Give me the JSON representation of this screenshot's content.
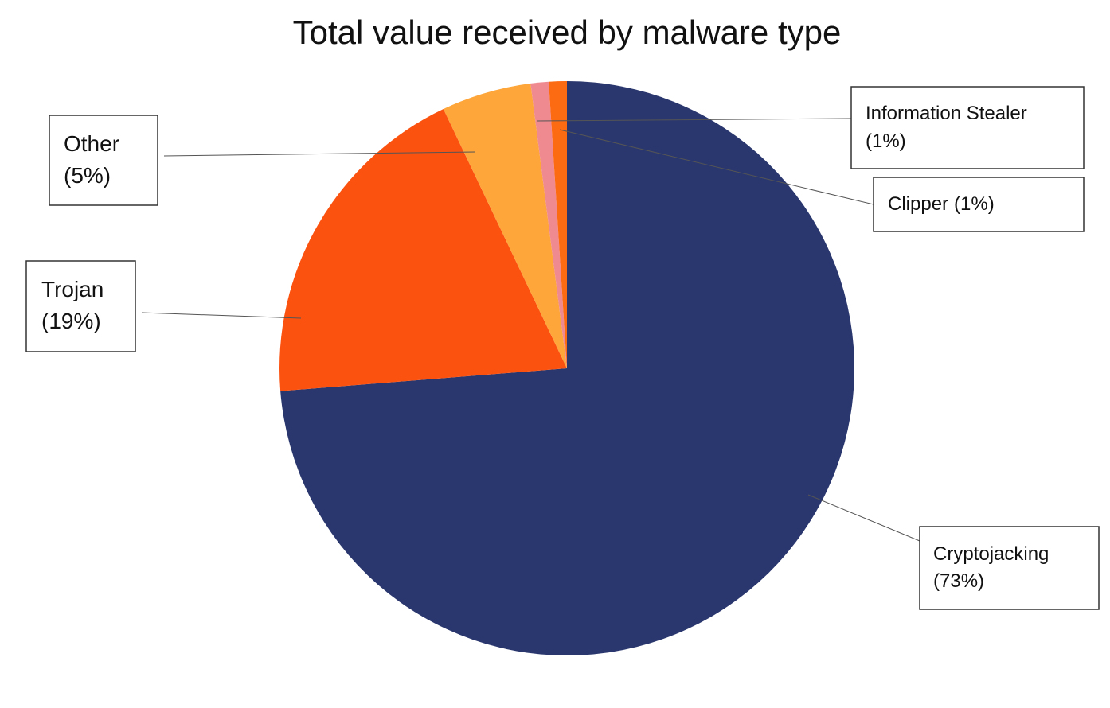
{
  "chart_data": {
    "type": "pie",
    "title": "Total value received by malware type",
    "categories": [
      "Cryptojacking",
      "Trojan",
      "Other",
      "Information Stealer",
      "Clipper"
    ],
    "values": [
      73,
      19,
      5,
      1,
      1
    ],
    "value_labels": [
      "(73%)",
      "(19%)",
      "(5%)",
      "(1%)",
      "(1%)"
    ],
    "colors": [
      "#2a376e",
      "#fc5210",
      "#fea63a",
      "#f08a91",
      "#fc6a12"
    ]
  }
}
